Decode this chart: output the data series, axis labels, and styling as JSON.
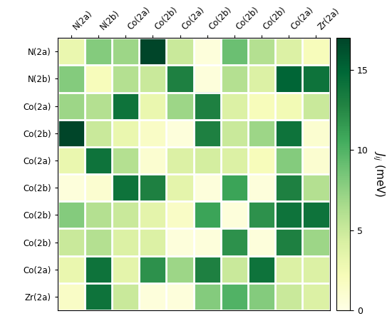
{
  "labels": [
    "N(2a)",
    "N(2b)",
    "Co(2a)",
    "Co(2b)",
    "Co(2a)",
    "Co(2b)",
    "Co(2b)",
    "Co(2b)",
    "Co(2a)",
    "Zr(2a)"
  ],
  "col_labels": [
    "N(2a)",
    "N(2b)",
    "Co(2a)",
    "Co(2b)",
    "Co(2a)",
    "Co(2b)",
    "Co(2b)",
    "Co(2b)",
    "Co(2a)",
    "Zr(2a)"
  ],
  "matrix": [
    [
      3.0,
      8.0,
      7.0,
      17.0,
      5.0,
      0.5,
      9.0,
      6.0,
      4.0,
      2.0
    ],
    [
      8.0,
      2.0,
      6.0,
      5.0,
      13.0,
      0.5,
      6.0,
      4.0,
      15.0,
      14.0
    ],
    [
      7.0,
      6.0,
      14.0,
      3.0,
      7.0,
      13.0,
      4.0,
      2.0,
      2.5,
      5.0
    ],
    [
      17.0,
      5.0,
      3.0,
      1.5,
      0.5,
      13.0,
      5.0,
      7.0,
      14.0,
      1.0
    ],
    [
      3.0,
      14.0,
      6.0,
      1.0,
      4.0,
      4.5,
      4.0,
      2.0,
      8.0,
      1.0
    ],
    [
      0.5,
      1.0,
      14.0,
      13.0,
      3.5,
      0.5,
      11.0,
      0.5,
      13.0,
      6.0
    ],
    [
      8.0,
      6.0,
      5.0,
      3.5,
      1.5,
      11.0,
      0.5,
      12.0,
      14.0,
      14.0
    ],
    [
      5.0,
      6.0,
      4.0,
      4.0,
      0.5,
      0.5,
      12.0,
      0.5,
      13.0,
      7.0
    ],
    [
      3.0,
      14.0,
      3.5,
      12.0,
      7.0,
      13.0,
      5.0,
      14.0,
      4.0,
      4.0
    ],
    [
      1.5,
      14.0,
      5.0,
      0.5,
      0.5,
      8.0,
      10.0,
      8.0,
      5.0,
      4.0
    ]
  ],
  "vmin": 0,
  "vmax": 17,
  "cmap": "YlGn",
  "colorbar_label": "$J_{ij}$ (meV)",
  "colorbar_ticks": [
    0,
    5,
    10,
    15
  ],
  "figsize": [
    5.5,
    4.5
  ],
  "dpi": 100
}
